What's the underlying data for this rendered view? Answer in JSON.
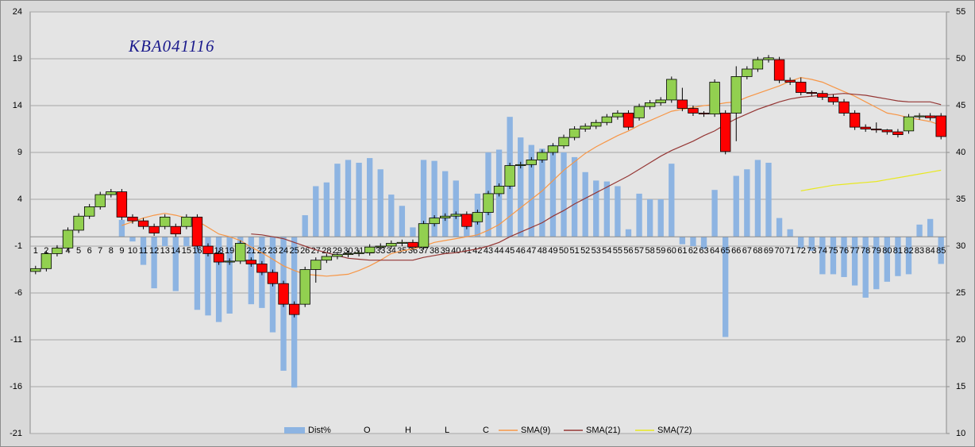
{
  "chart_data": {
    "type": "candlestick",
    "annotation": "KBA041116",
    "categories": [
      "1",
      "2",
      "3",
      "4",
      "5",
      "6",
      "7",
      "8",
      "9",
      "10",
      "11",
      "12",
      "13",
      "14",
      "15",
      "16",
      "17",
      "18",
      "19",
      "20",
      "21",
      "22",
      "23",
      "24",
      "25",
      "26",
      "27",
      "28",
      "29",
      "30",
      "31",
      "32",
      "33",
      "34",
      "35",
      "36",
      "37",
      "38",
      "39",
      "40",
      "41",
      "42",
      "43",
      "44",
      "45",
      "46",
      "47",
      "48",
      "49",
      "50",
      "51",
      "52",
      "53",
      "54",
      "55",
      "56",
      "57",
      "58",
      "59",
      "60",
      "61",
      "62",
      "63",
      "64",
      "65",
      "66",
      "67",
      "68",
      "69",
      "70",
      "71",
      "72",
      "73",
      "74",
      "75",
      "76",
      "77",
      "78",
      "79",
      "80",
      "81",
      "82",
      "83",
      "84",
      "85"
    ],
    "ylim": [
      -21,
      24
    ],
    "yticks": [
      24,
      19,
      14,
      9,
      4,
      -1,
      -6,
      -11,
      -16,
      -21
    ],
    "y2lim": [
      10,
      55
    ],
    "y2ticks": [
      55,
      50,
      45,
      40,
      35,
      30,
      25,
      20,
      15,
      10
    ],
    "grid": true,
    "legend": "bottom",
    "up_color": "#92d050",
    "down_color": "#ff0000",
    "series": [
      {
        "name": "Dist%",
        "color": "#8db4e2",
        "axis": "y",
        "values": [
          0,
          0,
          0,
          0,
          0,
          0,
          0,
          0,
          1.8,
          -0.5,
          -3.0,
          -5.5,
          -1.0,
          -5.8,
          -1.0,
          -7.8,
          -8.4,
          -9.1,
          -8.2,
          -2.0,
          -7.2,
          -7.6,
          -10.2,
          -14.3,
          -16.1,
          2.3,
          5.4,
          5.8,
          7.8,
          8.2,
          7.9,
          8.4,
          7.2,
          4.5,
          3.3,
          1.0,
          8.2,
          8.1,
          7.0,
          6.0,
          1.5,
          4.6,
          9.0,
          9.3,
          12.8,
          10.6,
          9.8,
          9.4,
          9.8,
          9.0,
          8.5,
          6.9,
          6.0,
          5.9,
          5.4,
          0.8,
          4.6,
          4.0,
          4.0,
          7.8,
          -0.8,
          -1.0,
          -1.3,
          5.0,
          -10.7,
          6.5,
          7.2,
          8.2,
          7.9,
          2.0,
          0.8,
          -1.2,
          -1.5,
          -4.0,
          -4.0,
          -4.3,
          -5.2,
          -6.5,
          -5.6,
          -4.8,
          -4.2,
          -4.0,
          1.3,
          1.9,
          -2.9
        ]
      },
      {
        "name": "O",
        "axis": "y2",
        "values": [
          27.3,
          27.6,
          29.2,
          29.8,
          31.7,
          33.2,
          34.2,
          35.5,
          35.8,
          33.1,
          32.7,
          32.1,
          32.1,
          32.1,
          32.1,
          33.1,
          30.0,
          29.2,
          28.3,
          28.4,
          28.5,
          28.1,
          27.2,
          26.0,
          23.8,
          23.8,
          27.5,
          28.5,
          28.9,
          29.1,
          29.2,
          29.3,
          29.9,
          30.0,
          30.3,
          30.4,
          29.9,
          32.4,
          33.0,
          33.2,
          33.4,
          32.6,
          33.6,
          35.6,
          36.4,
          38.6,
          38.7,
          39.2,
          40.0,
          40.7,
          41.6,
          42.5,
          42.8,
          43.2,
          43.8,
          44.2,
          43.7,
          44.9,
          45.3,
          45.6,
          45.6,
          44.7,
          44.2,
          44.1,
          44.2,
          44.2,
          48.1,
          48.9,
          49.9,
          49.9,
          47.7,
          47.5,
          46.4,
          46.3,
          45.9,
          45.4,
          44.2,
          42.7,
          42.5,
          42.4,
          42.2,
          42.3,
          43.8,
          43.9,
          43.9
        ]
      },
      {
        "name": "H",
        "axis": "y2",
        "values": [
          27.9,
          29.5,
          30.1,
          32.0,
          33.5,
          34.5,
          35.8,
          36.1,
          36.1,
          33.4,
          33.0,
          32.4,
          33.4,
          32.4,
          33.4,
          33.4,
          30.3,
          29.5,
          28.7,
          30.6,
          28.8,
          28.4,
          27.5,
          26.3,
          24.1,
          27.8,
          28.8,
          29.2,
          29.4,
          29.5,
          29.6,
          30.2,
          30.3,
          30.6,
          30.7,
          30.7,
          32.7,
          33.3,
          33.5,
          33.7,
          33.7,
          33.9,
          35.9,
          36.7,
          38.9,
          39.0,
          39.5,
          40.3,
          41.0,
          41.9,
          42.8,
          43.1,
          43.5,
          44.1,
          44.5,
          44.5,
          45.2,
          45.6,
          45.9,
          48.1,
          46.9,
          45.0,
          44.4,
          47.8,
          44.5,
          49.2,
          49.2,
          50.2,
          50.4,
          50.2,
          48.0,
          48.0,
          46.6,
          46.6,
          46.2,
          45.7,
          44.5,
          43.0,
          43.2,
          42.5,
          42.5,
          44.1,
          44.2,
          44.2,
          44.2
        ]
      },
      {
        "name": "L",
        "axis": "y2",
        "values": [
          27.0,
          27.3,
          28.9,
          29.5,
          31.4,
          32.9,
          33.9,
          35.2,
          32.8,
          32.4,
          31.8,
          31.1,
          31.8,
          31.0,
          31.8,
          29.7,
          28.9,
          28.0,
          28.0,
          28.1,
          27.8,
          26.9,
          25.7,
          23.5,
          22.4,
          23.5,
          26.1,
          28.2,
          28.6,
          28.8,
          28.9,
          29.0,
          29.6,
          29.7,
          30.0,
          29.6,
          29.6,
          32.1,
          32.7,
          32.9,
          31.8,
          32.3,
          33.3,
          35.3,
          36.1,
          38.3,
          38.4,
          38.9,
          39.7,
          40.4,
          41.3,
          42.2,
          42.5,
          42.9,
          43.5,
          42.4,
          43.4,
          44.6,
          45.0,
          45.3,
          44.4,
          43.9,
          43.8,
          43.8,
          39.8,
          41.2,
          47.8,
          48.6,
          49.6,
          47.4,
          47.2,
          46.1,
          46.0,
          45.6,
          45.1,
          43.9,
          42.4,
          42.2,
          42.1,
          41.9,
          41.6,
          42.0,
          43.5,
          43.4,
          41.4
        ]
      },
      {
        "name": "C",
        "axis": "y2",
        "values": [
          27.6,
          29.2,
          29.8,
          31.7,
          33.2,
          34.2,
          35.5,
          35.8,
          33.1,
          32.7,
          32.1,
          31.4,
          33.1,
          31.3,
          33.1,
          30.0,
          29.2,
          28.3,
          28.4,
          30.3,
          28.1,
          27.2,
          26.0,
          23.8,
          22.7,
          27.5,
          28.5,
          28.9,
          29.1,
          29.2,
          29.3,
          29.9,
          30.0,
          30.3,
          30.4,
          29.9,
          32.4,
          33.0,
          33.2,
          33.4,
          32.1,
          33.6,
          35.6,
          36.4,
          38.6,
          38.7,
          39.2,
          40.0,
          40.7,
          41.6,
          42.5,
          42.8,
          43.2,
          43.8,
          44.2,
          42.7,
          44.9,
          45.3,
          45.6,
          47.8,
          44.7,
          44.2,
          44.1,
          47.5,
          40.1,
          48.1,
          48.9,
          49.9,
          50.1,
          47.7,
          47.5,
          46.4,
          46.3,
          45.9,
          45.4,
          44.2,
          42.7,
          42.5,
          42.4,
          42.2,
          41.9,
          43.8,
          43.9,
          43.7,
          41.7
        ]
      },
      {
        "name": "SMA(9)",
        "color": "#f79646",
        "axis": "y2",
        "values": [
          null,
          null,
          null,
          null,
          null,
          null,
          null,
          null,
          32.2,
          32.6,
          33.0,
          33.3,
          33.5,
          33.3,
          33.0,
          32.7,
          32.0,
          31.3,
          31.0,
          30.6,
          29.9,
          29.3,
          28.6,
          27.9,
          27.4,
          27.0,
          26.9,
          26.8,
          26.9,
          27.0,
          27.4,
          27.9,
          28.5,
          29.2,
          29.5,
          29.7,
          30.0,
          30.4,
          30.6,
          30.8,
          31.0,
          31.2,
          31.7,
          32.3,
          33.2,
          34.1,
          35.0,
          35.9,
          37.0,
          38.1,
          39.0,
          39.9,
          40.6,
          41.2,
          41.8,
          42.3,
          42.9,
          43.4,
          43.9,
          44.4,
          44.6,
          44.8,
          45.0,
          45.1,
          45.3,
          45.4,
          45.9,
          46.3,
          46.7,
          47.1,
          47.6,
          48.0,
          47.8,
          47.5,
          47.0,
          46.5,
          46.0,
          45.4,
          44.8,
          44.2,
          44.0,
          43.7,
          43.5,
          43.3,
          42.9
        ]
      },
      {
        "name": "SMA(21)",
        "color": "#953735",
        "axis": "y2",
        "values": [
          null,
          null,
          null,
          null,
          null,
          null,
          null,
          null,
          null,
          null,
          null,
          null,
          null,
          null,
          null,
          null,
          null,
          null,
          null,
          null,
          31.3,
          31.2,
          31.0,
          30.8,
          30.4,
          30.0,
          29.6,
          29.3,
          29.0,
          28.7,
          28.6,
          28.5,
          28.5,
          28.5,
          28.5,
          28.5,
          28.8,
          29.0,
          29.2,
          29.3,
          29.5,
          29.7,
          30.0,
          30.4,
          31.0,
          31.5,
          32.0,
          32.5,
          33.2,
          33.8,
          34.5,
          35.1,
          35.7,
          36.3,
          36.9,
          37.5,
          38.2,
          38.9,
          39.6,
          40.2,
          40.7,
          41.2,
          41.8,
          42.3,
          43.0,
          43.6,
          44.1,
          44.6,
          45.0,
          45.4,
          45.7,
          45.9,
          46.0,
          46.1,
          46.2,
          46.3,
          46.2,
          46.1,
          45.9,
          45.7,
          45.5,
          45.4,
          45.4,
          45.4,
          45.1
        ]
      },
      {
        "name": "SMA(72)",
        "color": "#e8e820",
        "axis": "y2",
        "values": [
          null,
          null,
          null,
          null,
          null,
          null,
          null,
          null,
          null,
          null,
          null,
          null,
          null,
          null,
          null,
          null,
          null,
          null,
          null,
          null,
          null,
          null,
          null,
          null,
          null,
          null,
          null,
          null,
          null,
          null,
          null,
          null,
          null,
          null,
          null,
          null,
          null,
          null,
          null,
          null,
          null,
          null,
          null,
          null,
          null,
          null,
          null,
          null,
          null,
          null,
          null,
          null,
          null,
          null,
          null,
          null,
          null,
          null,
          null,
          null,
          null,
          null,
          null,
          null,
          null,
          null,
          null,
          null,
          null,
          null,
          null,
          35.9,
          36.1,
          36.3,
          36.5,
          36.6,
          36.7,
          36.8,
          36.9,
          37.1,
          37.3,
          37.5,
          37.7,
          37.9,
          38.1
        ]
      }
    ]
  }
}
